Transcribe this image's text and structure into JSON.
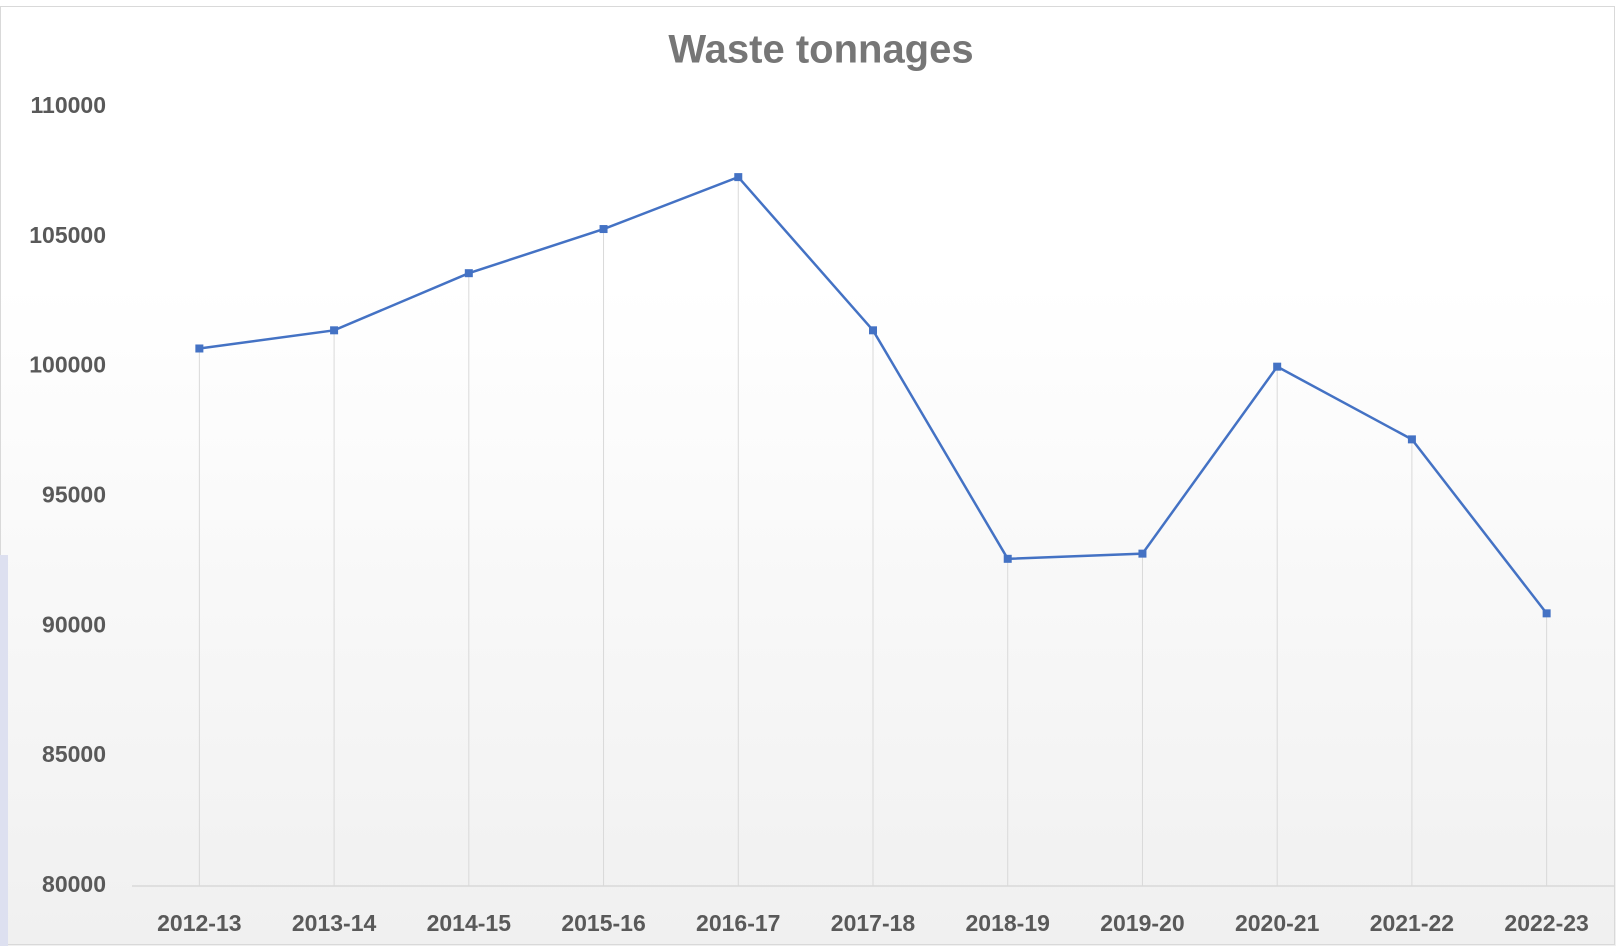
{
  "chart_data": {
    "type": "line",
    "title": "Waste tonnages",
    "categories": [
      "2012-13",
      "2013-14",
      "2014-15",
      "2015-16",
      "2016-17",
      "2017-18",
      "2018-19",
      "2019-20",
      "2020-21",
      "2021-22",
      "2022-23"
    ],
    "series": [
      {
        "name": "Waste tonnages",
        "color": "#4472c4",
        "values": [
          100700,
          101400,
          103600,
          105300,
          107300,
          101400,
          92600,
          92800,
          100000,
          97200,
          90500
        ]
      }
    ],
    "ylim": [
      80000,
      110000
    ],
    "yticks": [
      80000,
      85000,
      90000,
      95000,
      100000,
      105000,
      110000
    ],
    "grid": "vertical"
  }
}
